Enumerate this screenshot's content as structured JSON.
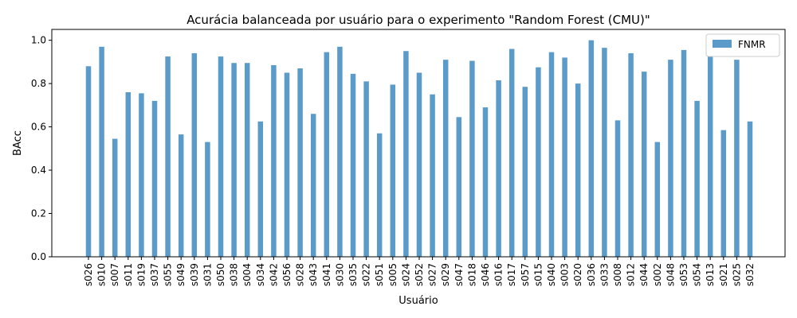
{
  "chart_data": {
    "type": "bar",
    "title": "Acurácia balanceada por usuário para o experimento \"Random Forest (CMU)\"",
    "xlabel": "Usuário",
    "ylabel": "BAcc",
    "ylim": [
      0,
      1.05
    ],
    "yticks": [
      "0.0",
      "0.2",
      "0.4",
      "0.6",
      "0.8",
      "1.0"
    ],
    "grid": false,
    "legend_position": "top-right",
    "color": "#5b9bc9",
    "categories": [
      "s026",
      "s010",
      "s007",
      "s011",
      "s019",
      "s037",
      "s055",
      "s049",
      "s039",
      "s031",
      "s050",
      "s038",
      "s004",
      "s034",
      "s042",
      "s056",
      "s028",
      "s043",
      "s041",
      "s030",
      "s035",
      "s022",
      "s051",
      "s005",
      "s024",
      "s052",
      "s027",
      "s029",
      "s047",
      "s018",
      "s046",
      "s016",
      "s017",
      "s057",
      "s015",
      "s040",
      "s003",
      "s020",
      "s036",
      "s033",
      "s008",
      "s012",
      "s044",
      "s002",
      "s048",
      "s053",
      "s054",
      "s013",
      "s021",
      "s025",
      "s032"
    ],
    "series": [
      {
        "name": "FNMR",
        "values": [
          0.88,
          0.97,
          0.545,
          0.76,
          0.755,
          0.72,
          0.925,
          0.565,
          0.94,
          0.53,
          0.925,
          0.895,
          0.895,
          0.625,
          0.885,
          0.85,
          0.87,
          0.66,
          0.945,
          0.97,
          0.845,
          0.81,
          0.57,
          0.795,
          0.95,
          0.85,
          0.75,
          0.91,
          0.645,
          0.905,
          0.69,
          0.815,
          0.96,
          0.785,
          0.875,
          0.945,
          0.92,
          0.8,
          1.0,
          0.965,
          0.63,
          0.94,
          0.855,
          0.53,
          0.91,
          0.955,
          0.72,
          0.925,
          0.585,
          0.91,
          0.625
        ]
      }
    ]
  }
}
